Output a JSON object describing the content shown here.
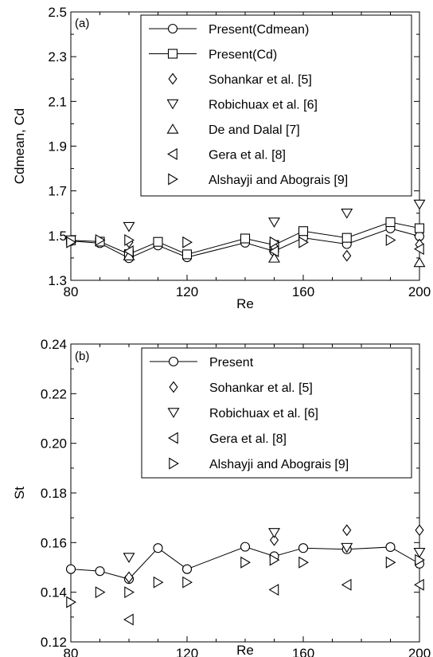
{
  "chart_data": [
    {
      "type": "line",
      "panel_label": "(a)",
      "xlabel": "Re",
      "ylabel": "Cdmean, Cd",
      "xlim": [
        80,
        200
      ],
      "ylim": [
        1.3,
        2.5
      ],
      "x_ticks": [
        80,
        120,
        160,
        200
      ],
      "y_ticks": [
        1.3,
        1.5,
        1.7,
        1.9,
        2.1,
        2.3,
        2.5
      ],
      "y_tick_labels": [
        "1.3",
        "1.5",
        "1.7",
        "1.9",
        "2.1",
        "2.3",
        "2.5"
      ],
      "legend_position": "top-right",
      "series": [
        {
          "name": "Present(Cdmean)",
          "marker": "circle",
          "line": true,
          "x": [
            80,
            90,
            100,
            110,
            120,
            140,
            150,
            160,
            175,
            190,
            200
          ],
          "y": [
            1.476,
            1.466,
            1.399,
            1.456,
            1.403,
            1.468,
            1.43,
            1.49,
            1.462,
            1.532,
            1.497
          ]
        },
        {
          "name": "Present(Cd)",
          "marker": "square",
          "line": true,
          "x": [
            80,
            90,
            100,
            110,
            120,
            140,
            150,
            160,
            175,
            190,
            200
          ],
          "y": [
            1.479,
            1.473,
            1.417,
            1.472,
            1.416,
            1.487,
            1.458,
            1.52,
            1.49,
            1.56,
            1.533
          ]
        },
        {
          "name": "Sohankar et al. [5]",
          "marker": "diamond",
          "line": false,
          "x": [
            100,
            150,
            175,
            200
          ],
          "y": [
            1.47,
            1.45,
            1.41,
            1.46
          ]
        },
        {
          "name": "Robichuax et al. [6]",
          "marker": "triangle-down",
          "line": false,
          "x": [
            100,
            150,
            175,
            200
          ],
          "y": [
            1.54,
            1.56,
            1.6,
            1.64
          ]
        },
        {
          "name": "De and Dalal [7]",
          "marker": "triangle-up",
          "line": false,
          "x": [
            100,
            150,
            200
          ],
          "y": [
            1.41,
            1.4,
            1.38
          ]
        },
        {
          "name": "Gera et al. [8]",
          "marker": "triangle-left",
          "line": false,
          "x": [
            100,
            150,
            200
          ],
          "y": [
            1.43,
            1.43,
            1.44
          ]
        },
        {
          "name": "Alshayji and Abograis [9]",
          "marker": "triangle-right",
          "line": false,
          "x": [
            80,
            90,
            100,
            120,
            150,
            160,
            190
          ],
          "y": [
            1.47,
            1.48,
            1.48,
            1.47,
            1.47,
            1.47,
            1.48
          ]
        }
      ]
    },
    {
      "type": "line",
      "panel_label": "(b)",
      "xlabel": "Re",
      "ylabel": "St",
      "xlim": [
        80,
        200
      ],
      "ylim": [
        0.12,
        0.24
      ],
      "x_ticks": [
        80,
        120,
        160,
        200
      ],
      "y_ticks": [
        0.12,
        0.14,
        0.16,
        0.18,
        0.2,
        0.22,
        0.24
      ],
      "y_tick_labels": [
        "0.12",
        "0.14",
        "0.16",
        "0.18",
        "0.20",
        "0.22",
        "0.24"
      ],
      "legend_position": "top-right",
      "series": [
        {
          "name": "Present",
          "marker": "circle",
          "line": true,
          "x": [
            80,
            90,
            100,
            110,
            120,
            140,
            150,
            160,
            175,
            190,
            200
          ],
          "y": [
            0.1493,
            0.1485,
            0.1453,
            0.1578,
            0.1493,
            0.1583,
            0.1545,
            0.1578,
            0.1573,
            0.1582,
            0.1515
          ]
        },
        {
          "name": "Sohankar et al. [5]",
          "marker": "diamond",
          "line": false,
          "x": [
            100,
            150,
            175,
            200
          ],
          "y": [
            0.146,
            0.161,
            0.165,
            0.165
          ]
        },
        {
          "name": "Robichuax et al. [6]",
          "marker": "triangle-down",
          "line": false,
          "x": [
            100,
            150,
            175,
            200
          ],
          "y": [
            0.154,
            0.164,
            0.158,
            0.156
          ]
        },
        {
          "name": "Gera et al. [8]",
          "marker": "triangle-left",
          "line": false,
          "x": [
            100,
            150,
            175,
            200
          ],
          "y": [
            0.129,
            0.141,
            0.143,
            0.143
          ]
        },
        {
          "name": "Alshayji and Abograis [9]",
          "marker": "triangle-right",
          "line": false,
          "x": [
            80,
            90,
            100,
            110,
            120,
            140,
            150,
            160,
            190,
            200
          ],
          "y": [
            0.136,
            0.14,
            0.14,
            0.144,
            0.144,
            0.152,
            0.153,
            0.152,
            0.152,
            0.153
          ]
        }
      ]
    }
  ]
}
